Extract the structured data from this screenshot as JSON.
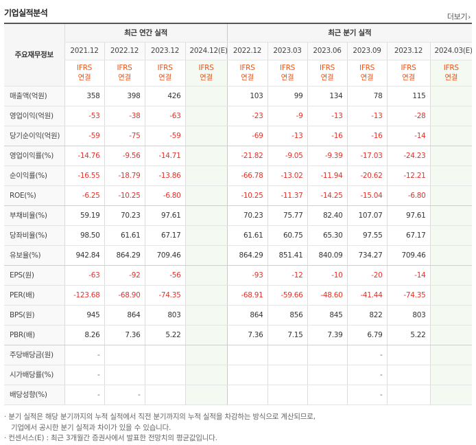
{
  "title": "기업실적분석",
  "more_label": "더보기",
  "label_header": "주요재무정보",
  "groups": {
    "annual": "최근 연간 실적",
    "quarter": "최근 분기 실적"
  },
  "periods": {
    "annual": [
      "2021.12",
      "2022.12",
      "2023.12",
      "2024.12(E)"
    ],
    "quarter": [
      "2022.12",
      "2023.03",
      "2023.06",
      "2023.09",
      "2023.12",
      "2024.03(E)"
    ]
  },
  "ifrs": {
    "line1": "IFRS",
    "line2": "연결"
  },
  "rows": [
    {
      "label": "매출액(억원)",
      "annual": [
        "358",
        "398",
        "426",
        ""
      ],
      "quarter": [
        "103",
        "99",
        "134",
        "78",
        "115",
        ""
      ]
    },
    {
      "label": "영업이익(억원)",
      "annual": [
        "-53",
        "-38",
        "-63",
        ""
      ],
      "quarter": [
        "-23",
        "-9",
        "-13",
        "-13",
        "-28",
        ""
      ]
    },
    {
      "label": "당기순이익(억원)",
      "annual": [
        "-59",
        "-75",
        "-59",
        ""
      ],
      "quarter": [
        "-69",
        "-13",
        "-16",
        "-16",
        "-14",
        ""
      ]
    },
    {
      "label": "영업이익률(%)",
      "annual": [
        "-14.76",
        "-9.56",
        "-14.71",
        ""
      ],
      "quarter": [
        "-21.82",
        "-9.05",
        "-9.39",
        "-17.03",
        "-24.23",
        ""
      ]
    },
    {
      "label": "순이익률(%)",
      "annual": [
        "-16.55",
        "-18.79",
        "-13.86",
        ""
      ],
      "quarter": [
        "-66.78",
        "-13.02",
        "-11.94",
        "-20.62",
        "-12.21",
        ""
      ]
    },
    {
      "label": "ROE(%)",
      "annual": [
        "-6.25",
        "-10.25",
        "-6.80",
        ""
      ],
      "quarter": [
        "-10.25",
        "-11.37",
        "-14.25",
        "-15.04",
        "-6.80",
        ""
      ]
    },
    {
      "label": "부채비율(%)",
      "annual": [
        "59.19",
        "70.23",
        "97.61",
        ""
      ],
      "quarter": [
        "70.23",
        "75.77",
        "82.40",
        "107.07",
        "97.61",
        ""
      ]
    },
    {
      "label": "당좌비율(%)",
      "annual": [
        "98.50",
        "61.61",
        "67.17",
        ""
      ],
      "quarter": [
        "61.61",
        "60.75",
        "65.30",
        "97.55",
        "67.17",
        ""
      ]
    },
    {
      "label": "유보율(%)",
      "annual": [
        "942.84",
        "864.29",
        "709.46",
        ""
      ],
      "quarter": [
        "864.29",
        "851.41",
        "840.09",
        "734.27",
        "709.46",
        ""
      ]
    },
    {
      "label": "EPS(원)",
      "annual": [
        "-63",
        "-92",
        "-56",
        ""
      ],
      "quarter": [
        "-93",
        "-12",
        "-10",
        "-20",
        "-14",
        ""
      ]
    },
    {
      "label": "PER(배)",
      "annual": [
        "-123.68",
        "-68.90",
        "-74.35",
        ""
      ],
      "quarter": [
        "-68.91",
        "-59.66",
        "-48.60",
        "-41.44",
        "-74.35",
        ""
      ]
    },
    {
      "label": "BPS(원)",
      "annual": [
        "945",
        "864",
        "803",
        ""
      ],
      "quarter": [
        "864",
        "856",
        "845",
        "822",
        "803",
        ""
      ]
    },
    {
      "label": "PBR(배)",
      "annual": [
        "8.26",
        "7.36",
        "5.22",
        ""
      ],
      "quarter": [
        "7.36",
        "7.15",
        "7.39",
        "6.79",
        "5.22",
        ""
      ]
    },
    {
      "label": "주당배당금(원)",
      "annual": [
        "-",
        "",
        "",
        ""
      ],
      "quarter": [
        "",
        "",
        "",
        "-",
        "",
        ""
      ]
    },
    {
      "label": "시가배당률(%)",
      "annual": [
        "-",
        "",
        "",
        ""
      ],
      "quarter": [
        "",
        "",
        "",
        "-",
        "",
        ""
      ]
    },
    {
      "label": "배당성향(%)",
      "annual": [
        "-",
        "-",
        "",
        ""
      ],
      "quarter": [
        "",
        "",
        "",
        "-",
        "",
        ""
      ]
    }
  ],
  "notes": [
    "· 분기 실적은 해당 분기까지의 누적 실적에서 직전 분기까지의 누적 실적을 차감하는 방식으로 계산되므로,",
    "기업에서 공시한 분기 실적과 차이가 있을 수 있습니다.",
    "· 컨센서스(E) : 최근 3개월간 증권사에서 발표한 전망치의 평균값입니다."
  ],
  "colors": {
    "negative": "#e0322b",
    "ifrs": "#e8541a",
    "estimate_bg": "#f4f9f1"
  }
}
